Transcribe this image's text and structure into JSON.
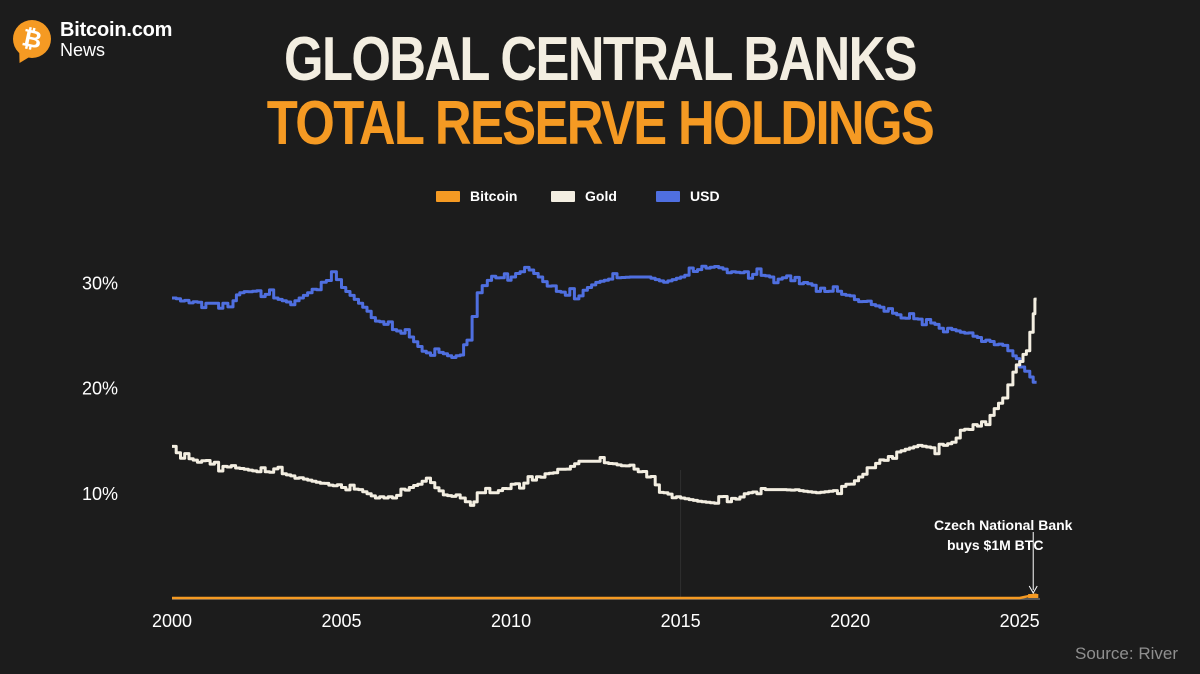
{
  "brand": {
    "name": "Bitcoin.com",
    "sub": "News",
    "icon": "bitcoin-icon",
    "symbol": "₿"
  },
  "title": {
    "line1": "GLOBAL CENTRAL BANKS",
    "line2": "TOTAL RESERVE HOLDINGS"
  },
  "source": "Source: River",
  "colors": {
    "bitcoin": "#f59a23",
    "gold": "#f3eee1",
    "usd": "#4f6fe0",
    "background": "#1c1c1c",
    "text": "#ffffff"
  },
  "chart_data": {
    "type": "line",
    "title": "GLOBAL CENTRAL BANKS TOTAL RESERVE HOLDINGS",
    "xlabel": "",
    "ylabel": "",
    "xlim": [
      2000,
      2025.6
    ],
    "ylim": [
      0,
      30.5
    ],
    "xticks": [
      2000,
      2005,
      2010,
      2015,
      2020,
      2025
    ],
    "xtick_labels": [
      "2000",
      "2005",
      "2010",
      "2015",
      "2020",
      "2025"
    ],
    "yticks": [
      10,
      20,
      30
    ],
    "ytick_labels": [
      "10%",
      "20%",
      "30%"
    ],
    "legend": [
      "Bitcoin",
      "Gold",
      "USD"
    ],
    "legend_position": "top-center",
    "annotation": {
      "text_line1": "Czech National Bank",
      "text_line2": "buys $1M BTC",
      "x": 2025.4,
      "y": 0.1
    },
    "series": [
      {
        "name": "USD",
        "x": [
          2000,
          2000.5,
          2001,
          2001.5,
          2001.8,
          2002,
          2002.5,
          2003,
          2003.5,
          2004,
          2004.4,
          2004.7,
          2005,
          2005.5,
          2006,
          2006.5,
          2007,
          2007.5,
          2008,
          2008.5,
          2008.7,
          2009,
          2009.3,
          2009.8,
          2010,
          2010.4,
          2010.8,
          2011.2,
          2011.6,
          2012,
          2012.5,
          2013,
          2013.5,
          2014,
          2014.5,
          2015,
          2015.5,
          2016,
          2016.5,
          2017,
          2017.5,
          2018,
          2018.5,
          2019,
          2019.5,
          2020,
          2020.5,
          2021,
          2021.5,
          2022,
          2022.5,
          2023,
          2023.5,
          2024,
          2024.5,
          2024.8,
          2025,
          2025.3,
          2025.5
        ],
        "values": [
          28.5,
          28.2,
          28.0,
          28.0,
          27.8,
          29.0,
          29.2,
          28.5,
          28.0,
          29.0,
          30.0,
          31.0,
          29.5,
          28.0,
          26.5,
          25.5,
          24.8,
          23.0,
          23.2,
          22.5,
          24.5,
          29.0,
          30.5,
          30.8,
          30.5,
          31.5,
          30.5,
          29.2,
          29.0,
          29.0,
          30.0,
          30.4,
          30.5,
          30.5,
          30.0,
          30.5,
          31.2,
          31.5,
          31.0,
          30.8,
          30.6,
          30.2,
          30.1,
          29.6,
          29.0,
          28.7,
          28.0,
          27.5,
          26.6,
          26.5,
          26.0,
          25.5,
          25.0,
          24.5,
          24.0,
          23.0,
          22.5,
          21.0,
          20.0
        ]
      },
      {
        "name": "Gold",
        "x": [
          2000,
          2000.5,
          2001,
          2001.5,
          2002,
          2002.5,
          2003,
          2003.5,
          2004,
          2004.5,
          2005,
          2005.5,
          2006,
          2006.5,
          2007,
          2007.5,
          2008,
          2008.5,
          2008.8,
          2009,
          2009.5,
          2010,
          2010.5,
          2011,
          2011.5,
          2012,
          2012.5,
          2013,
          2013.5,
          2014,
          2014.5,
          2015,
          2015.5,
          2016,
          2016.5,
          2017,
          2017.5,
          2018,
          2018.5,
          2019,
          2019.5,
          2020,
          2020.5,
          2021,
          2021.5,
          2022,
          2022.5,
          2023,
          2023.5,
          2024,
          2024.5,
          2024.8,
          2025,
          2025.2,
          2025.4,
          2025.5
        ],
        "values": [
          14.0,
          13.2,
          12.8,
          12.5,
          12.3,
          12.0,
          12.0,
          11.6,
          11.2,
          10.8,
          10.5,
          10.3,
          9.5,
          9.5,
          10.5,
          11.3,
          9.8,
          9.5,
          8.8,
          10.0,
          10.0,
          10.8,
          11.0,
          11.8,
          12.0,
          13.0,
          13.0,
          12.7,
          12.5,
          11.5,
          10.0,
          9.5,
          9.2,
          9.0,
          9.2,
          10.0,
          10.3,
          10.3,
          10.2,
          10.0,
          10.2,
          11.0,
          12.0,
          13.5,
          14.0,
          14.5,
          14.2,
          14.8,
          16.0,
          17.0,
          19.0,
          21.5,
          22.8,
          23.5,
          27.0,
          29.8
        ]
      },
      {
        "name": "Bitcoin",
        "x": [
          2000,
          2025,
          2025.3,
          2025.4,
          2025.5
        ],
        "values": [
          0,
          0,
          0.02,
          0.1,
          0.12
        ]
      }
    ]
  }
}
